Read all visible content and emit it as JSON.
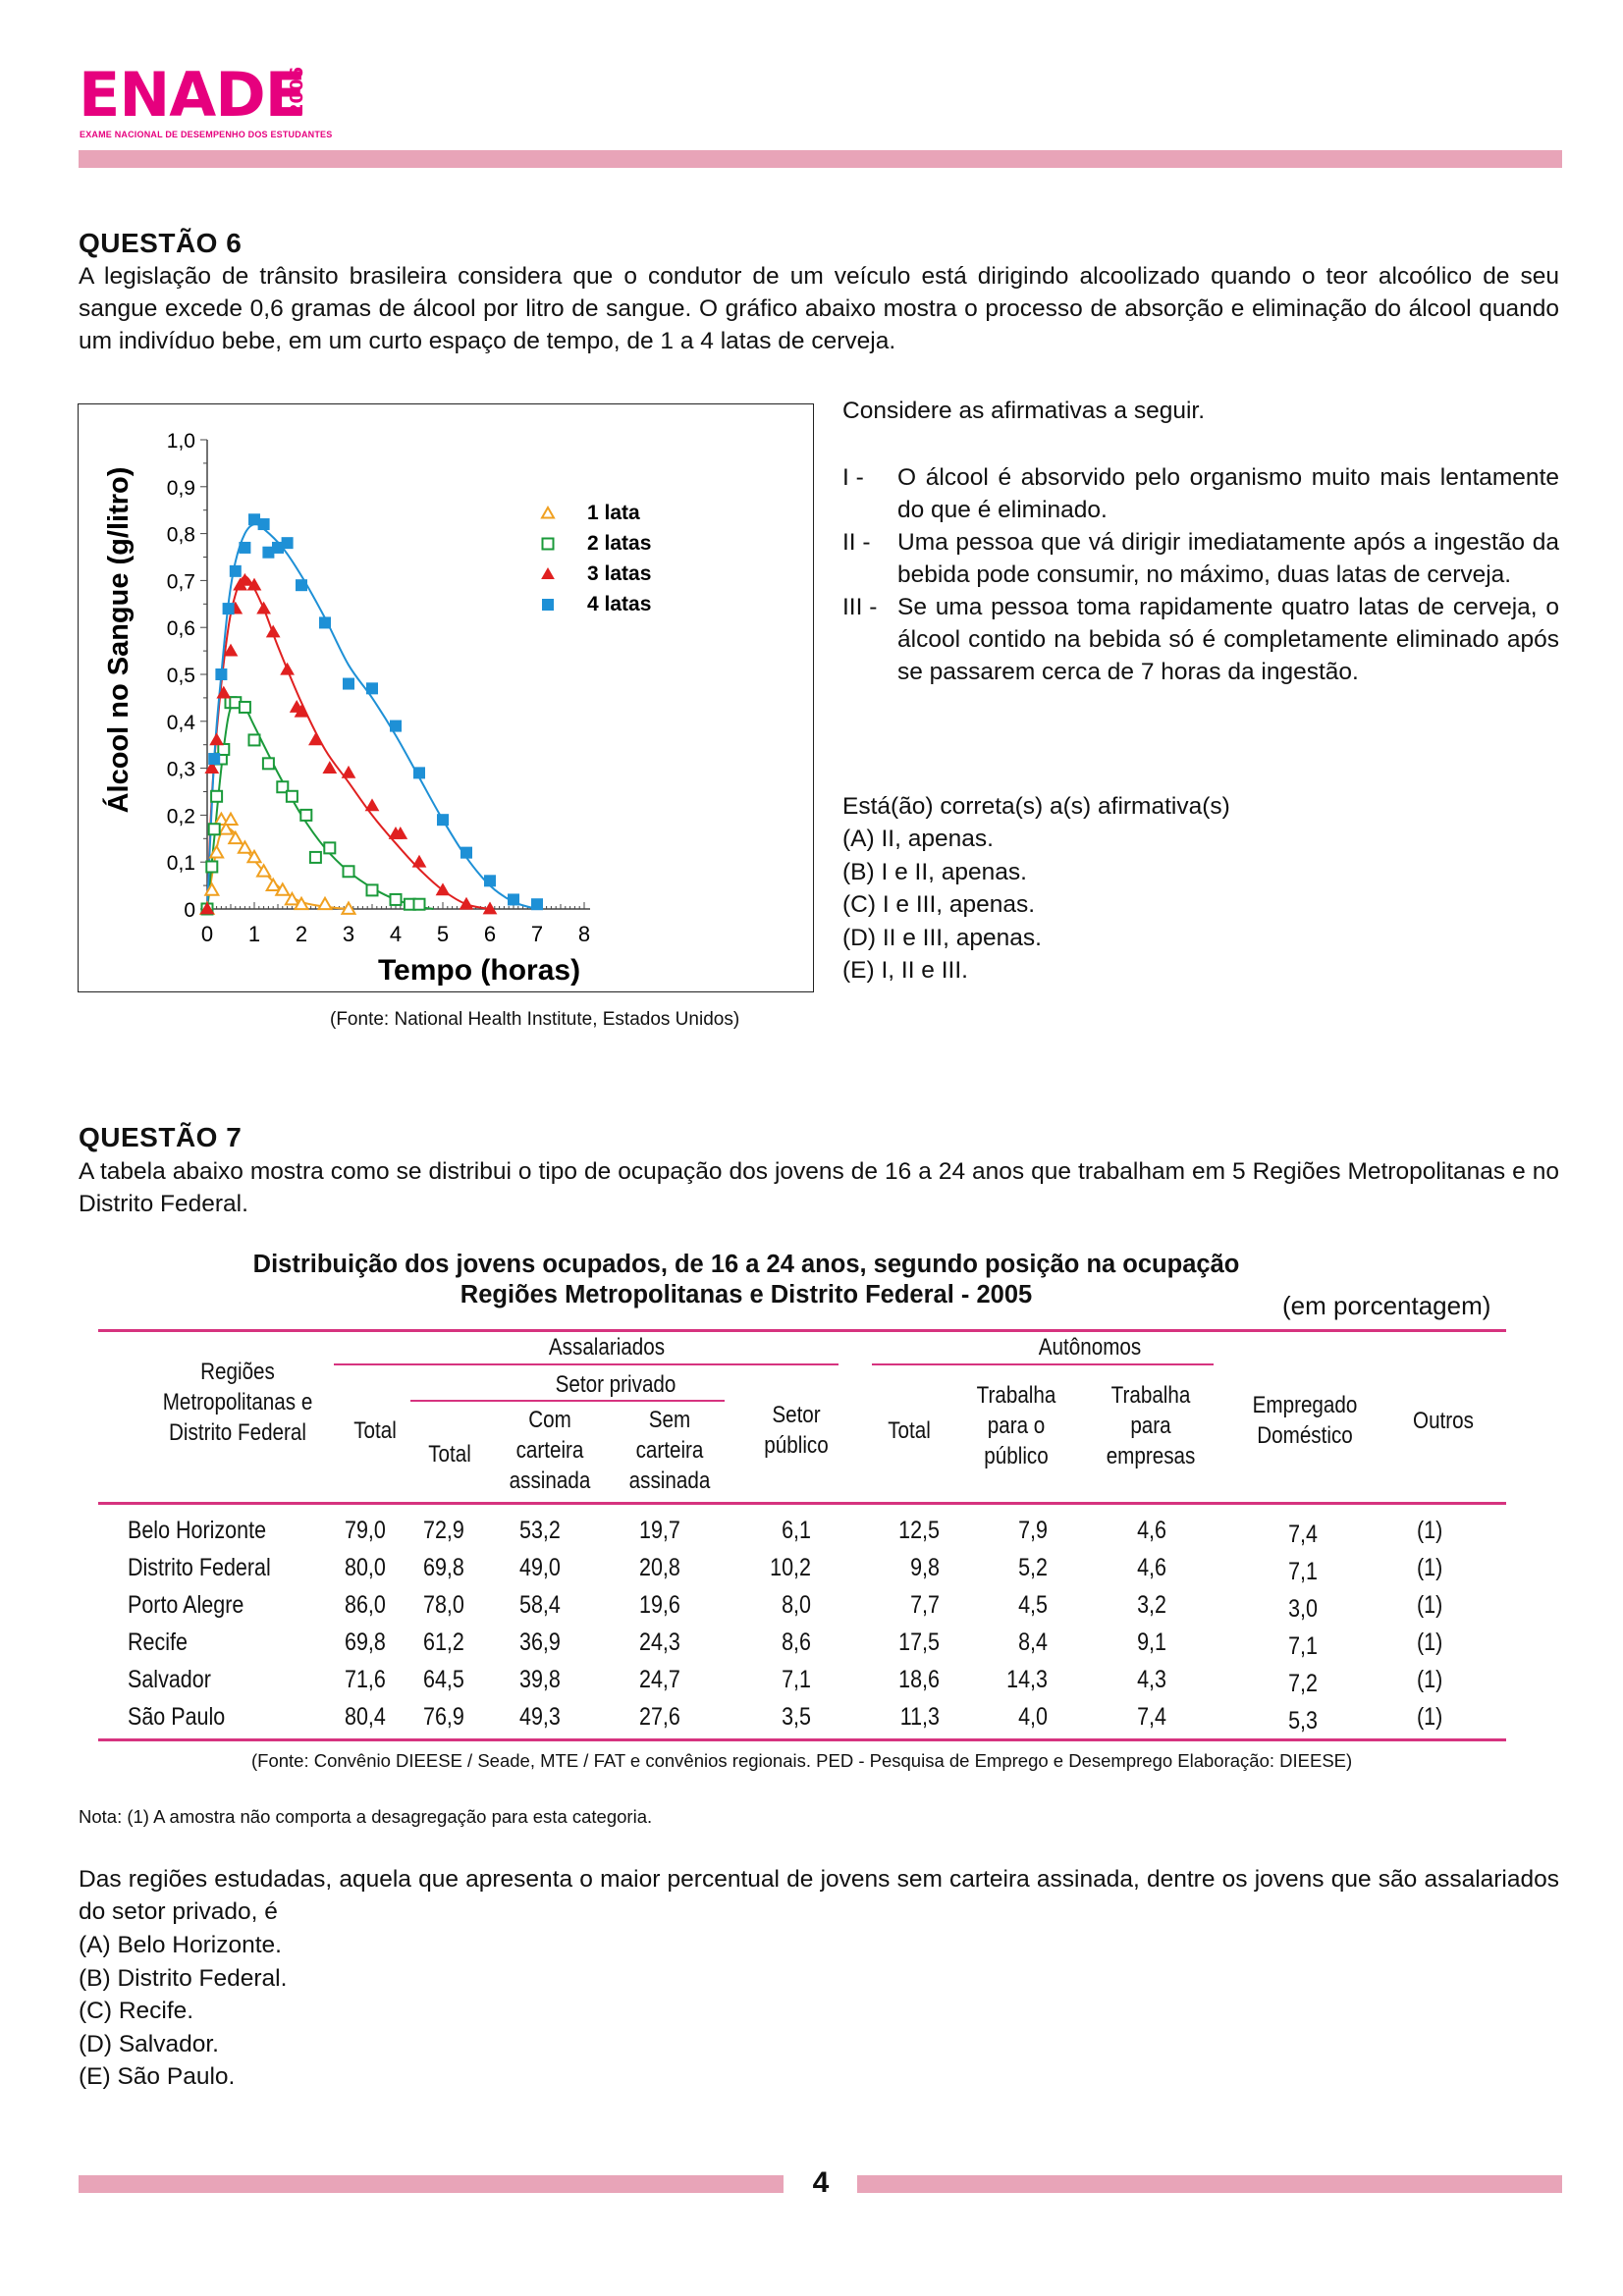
{
  "header": {
    "logo_text": "ENADE",
    "logo_year": "2006",
    "logo_subtitle": "EXAME NACIONAL DE DESEMPENHO DOS ESTUDANTES",
    "brand_color": "#e6007e",
    "bar_color": "#e8a4b8"
  },
  "q6": {
    "title": "QUESTÃO 6",
    "text": "A legislação de trânsito brasileira considera que o condutor de um veículo está dirigindo alcoolizado quando o teor alcoólico de seu sangue excede 0,6 gramas de álcool por litro de sangue. O gráfico abaixo mostra o processo de absorção e eliminação do álcool quando um indivíduo bebe, em um curto espaço de tempo, de 1 a 4 latas de cerveja.",
    "source": "(Fonte: National Health Institute, Estados Unidos)",
    "consider": "Considere as afirmativas a seguir.",
    "affirmatives": [
      {
        "num": "I  -",
        "text": "O álcool é absorvido pelo organismo muito mais lentamente do que é eliminado."
      },
      {
        "num": "II  -",
        "text": "Uma pessoa que vá dirigir imediatamente após a ingestão da bebida pode consumir, no máximo, duas latas de cerveja."
      },
      {
        "num": "III  -",
        "text": "Se uma pessoa toma rapidamente quatro latas de cerveja, o álcool contido na bebida só é completamente eliminado após se passarem cerca de 7 horas da ingestão."
      }
    ],
    "prompt": "Está(ão) correta(s) a(s) afirmativa(s)",
    "options": [
      "(A)  II, apenas.",
      "(B)  I e II, apenas.",
      "(C)  I e III, apenas.",
      "(D)  II e III, apenas.",
      "(E)  I, II e III."
    ]
  },
  "chart_data": {
    "type": "scatter",
    "title": "",
    "xlabel": "Tempo (horas)",
    "ylabel": "Álcool no Sangue (g/litro)",
    "xlim": [
      0,
      8
    ],
    "ylim": [
      0,
      1.0
    ],
    "xticks": [
      "0",
      "1",
      "2",
      "3",
      "4",
      "5",
      "6",
      "7",
      "8"
    ],
    "yticks": [
      "0",
      "0,1",
      "0,2",
      "0,3",
      "0,4",
      "0,5",
      "0,6",
      "0,7",
      "0,8",
      "0,9",
      "1,0"
    ],
    "grid": false,
    "legend": "top-right",
    "series": [
      {
        "name": "1 lata",
        "marker": "triangle-open",
        "color": "#f0a020",
        "points": [
          [
            0,
            0
          ],
          [
            0.1,
            0.04
          ],
          [
            0.2,
            0.12
          ],
          [
            0.3,
            0.19
          ],
          [
            0.4,
            0.17
          ],
          [
            0.5,
            0.19
          ],
          [
            0.6,
            0.15
          ],
          [
            0.8,
            0.13
          ],
          [
            1.0,
            0.11
          ],
          [
            1.2,
            0.08
          ],
          [
            1.4,
            0.05
          ],
          [
            1.6,
            0.04
          ],
          [
            1.8,
            0.02
          ],
          [
            2.0,
            0.01
          ],
          [
            2.5,
            0.01
          ],
          [
            3.0,
            0.0
          ]
        ],
        "curve": [
          [
            0,
            0
          ],
          [
            0.1,
            0.07
          ],
          [
            0.25,
            0.15
          ],
          [
            0.4,
            0.17
          ],
          [
            0.55,
            0.165
          ],
          [
            0.8,
            0.13
          ],
          [
            1.2,
            0.08
          ],
          [
            1.6,
            0.04
          ],
          [
            2.0,
            0.015
          ],
          [
            2.5,
            0.005
          ],
          [
            3.0,
            0
          ]
        ]
      },
      {
        "name": "2 latas",
        "marker": "square-open",
        "color": "#1a9a3a",
        "points": [
          [
            0,
            0
          ],
          [
            0.1,
            0.09
          ],
          [
            0.15,
            0.17
          ],
          [
            0.2,
            0.24
          ],
          [
            0.3,
            0.32
          ],
          [
            0.35,
            0.34
          ],
          [
            0.5,
            0.44
          ],
          [
            0.6,
            0.44
          ],
          [
            0.8,
            0.43
          ],
          [
            1.0,
            0.36
          ],
          [
            1.3,
            0.31
          ],
          [
            1.6,
            0.26
          ],
          [
            1.8,
            0.24
          ],
          [
            2.1,
            0.2
          ],
          [
            2.3,
            0.11
          ],
          [
            2.6,
            0.13
          ],
          [
            3.0,
            0.08
          ],
          [
            3.5,
            0.04
          ],
          [
            4.0,
            0.02
          ],
          [
            4.3,
            0.01
          ],
          [
            4.5,
            0.01
          ]
        ],
        "curve": [
          [
            0,
            0
          ],
          [
            0.15,
            0.15
          ],
          [
            0.3,
            0.3
          ],
          [
            0.45,
            0.41
          ],
          [
            0.6,
            0.445
          ],
          [
            0.8,
            0.43
          ],
          [
            1.0,
            0.39
          ],
          [
            1.5,
            0.29
          ],
          [
            2.0,
            0.2
          ],
          [
            2.5,
            0.13
          ],
          [
            3.0,
            0.08
          ],
          [
            3.5,
            0.045
          ],
          [
            4.0,
            0.02
          ],
          [
            4.5,
            0.005
          ],
          [
            4.8,
            0
          ]
        ]
      },
      {
        "name": "3 latas",
        "marker": "triangle-filled",
        "color": "#e02020",
        "points": [
          [
            0,
            0
          ],
          [
            0.1,
            0.3
          ],
          [
            0.2,
            0.36
          ],
          [
            0.35,
            0.46
          ],
          [
            0.5,
            0.55
          ],
          [
            0.6,
            0.64
          ],
          [
            0.7,
            0.69
          ],
          [
            0.8,
            0.7
          ],
          [
            1.0,
            0.69
          ],
          [
            1.2,
            0.64
          ],
          [
            1.4,
            0.59
          ],
          [
            1.7,
            0.51
          ],
          [
            1.9,
            0.43
          ],
          [
            2.0,
            0.42
          ],
          [
            2.3,
            0.36
          ],
          [
            2.6,
            0.3
          ],
          [
            3.0,
            0.29
          ],
          [
            3.5,
            0.22
          ],
          [
            4.0,
            0.16
          ],
          [
            4.1,
            0.16
          ],
          [
            4.5,
            0.1
          ],
          [
            5.0,
            0.04
          ],
          [
            5.5,
            0.01
          ],
          [
            6.0,
            0.0
          ]
        ],
        "curve": [
          [
            0,
            0
          ],
          [
            0.1,
            0.24
          ],
          [
            0.25,
            0.43
          ],
          [
            0.45,
            0.6
          ],
          [
            0.6,
            0.67
          ],
          [
            0.75,
            0.705
          ],
          [
            0.9,
            0.7
          ],
          [
            1.2,
            0.64
          ],
          [
            1.5,
            0.56
          ],
          [
            2.0,
            0.44
          ],
          [
            2.5,
            0.34
          ],
          [
            3.0,
            0.27
          ],
          [
            3.5,
            0.2
          ],
          [
            4.0,
            0.14
          ],
          [
            4.5,
            0.085
          ],
          [
            5.0,
            0.04
          ],
          [
            5.5,
            0.01
          ],
          [
            6.0,
            0
          ]
        ]
      },
      {
        "name": "4 latas",
        "marker": "square-filled",
        "color": "#1e90d6",
        "points": [
          [
            0.15,
            0.32
          ],
          [
            0.3,
            0.5
          ],
          [
            0.45,
            0.64
          ],
          [
            0.6,
            0.72
          ],
          [
            0.8,
            0.77
          ],
          [
            1.0,
            0.83
          ],
          [
            1.2,
            0.82
          ],
          [
            1.3,
            0.76
          ],
          [
            1.5,
            0.77
          ],
          [
            1.7,
            0.78
          ],
          [
            2.0,
            0.69
          ],
          [
            2.5,
            0.61
          ],
          [
            3.0,
            0.48
          ],
          [
            3.5,
            0.47
          ],
          [
            4.0,
            0.39
          ],
          [
            4.5,
            0.29
          ],
          [
            5.0,
            0.19
          ],
          [
            5.5,
            0.12
          ],
          [
            6.0,
            0.06
          ],
          [
            6.5,
            0.02
          ],
          [
            7.0,
            0.01
          ]
        ],
        "curve": [
          [
            0,
            0
          ],
          [
            0.15,
            0.32
          ],
          [
            0.3,
            0.5
          ],
          [
            0.45,
            0.65
          ],
          [
            0.6,
            0.74
          ],
          [
            0.8,
            0.8
          ],
          [
            1.0,
            0.82
          ],
          [
            1.2,
            0.81
          ],
          [
            1.6,
            0.77
          ],
          [
            2.0,
            0.71
          ],
          [
            2.5,
            0.62
          ],
          [
            3.0,
            0.52
          ],
          [
            3.5,
            0.45
          ],
          [
            4.0,
            0.37
          ],
          [
            4.5,
            0.28
          ],
          [
            5.0,
            0.19
          ],
          [
            5.5,
            0.11
          ],
          [
            6.0,
            0.05
          ],
          [
            6.5,
            0.015
          ],
          [
            7.0,
            0
          ]
        ]
      }
    ]
  },
  "q7": {
    "title": "QUESTÃO 7",
    "text": "A tabela abaixo mostra como se distribui o tipo de ocupação dos jovens de 16 a 24 anos que trabalham em 5 Regiões Metropolitanas e no Distrito Federal.",
    "table_title_1": "Distribuição dos jovens ocupados, de 16 a 24 anos, segundo posição na ocupação",
    "table_title_2": "Regiões Metropolitanas e Distrito Federal - 2005",
    "unit": "(em porcentagem)",
    "headers": {
      "regions": "Regiões\nMetropolitanas e\nDistrito Federal",
      "assalariados": "Assalariados",
      "setor_privado": "Setor privado",
      "total": "Total",
      "total_privado": "Total",
      "com_carteira": "Com\ncarteira\nassinada",
      "sem_carteira": "Sem\ncarteira\nassinada",
      "setor_publico": "Setor\npúblico",
      "autonomos": "Autônomos",
      "total_auto": "Total",
      "trab_publico": "Trabalha\npara o\npúblico",
      "trab_empresas": "Trabalha\npara\nempresas",
      "empregado": "Empregado\nDoméstico",
      "outros": "Outros"
    },
    "rows": [
      [
        "Belo Horizonte",
        "79,0",
        "72,9",
        "53,2",
        "19,7",
        "6,1",
        "12,5",
        "7,9",
        "4,6",
        "7,4",
        "(1)"
      ],
      [
        "Distrito Federal",
        "80,0",
        "69,8",
        "49,0",
        "20,8",
        "10,2",
        "9,8",
        "5,2",
        "4,6",
        "7,1",
        "(1)"
      ],
      [
        "Porto Alegre",
        "86,0",
        "78,0",
        "58,4",
        "19,6",
        "8,0",
        "7,7",
        "4,5",
        "3,2",
        "3,0",
        "(1)"
      ],
      [
        "Recife",
        "69,8",
        "61,2",
        "36,9",
        "24,3",
        "8,6",
        "17,5",
        "8,4",
        "9,1",
        "7,1",
        "(1)"
      ],
      [
        "Salvador",
        "71,6",
        "64,5",
        "39,8",
        "24,7",
        "7,1",
        "18,6",
        "14,3",
        "4,3",
        "7,2",
        "(1)"
      ],
      [
        "São Paulo",
        "80,4",
        "76,9",
        "49,3",
        "27,6",
        "3,5",
        "11,3",
        "4,0",
        "7,4",
        "5,3",
        "(1)"
      ]
    ],
    "source": "(Fonte: Convênio DIEESE / Seade, MTE / FAT e convênios regionais. PED - Pesquisa de Emprego e Desemprego Elaboração: DIEESE)",
    "note": "Nota: (1) A amostra não comporta a desagregação para esta categoria.",
    "question": "Das regiões estudadas, aquela que apresenta o maior percentual de jovens sem carteira assinada, dentre os jovens que são assalariados do setor privado, é",
    "options": [
      "(A)  Belo Horizonte.",
      "(B)  Distrito Federal.",
      "(C)  Recife.",
      "(D)  Salvador.",
      "(E)  São Paulo."
    ]
  },
  "footer": {
    "page_number": "4"
  }
}
